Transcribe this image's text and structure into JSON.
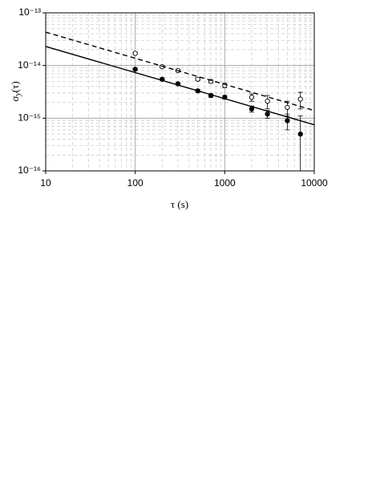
{
  "chart_data": {
    "type": "scatter",
    "x_label": "τ (s)",
    "y_label": {
      "base": "σ",
      "sub": "y",
      "tail": "(τ)"
    },
    "log_x": true,
    "log_y": true,
    "grid": true,
    "minor_grid": true,
    "xlim": [
      10,
      10000
    ],
    "xticks": [
      10,
      100,
      1000,
      10000
    ],
    "ylim": [
      1e-16,
      1e-13
    ],
    "yticks": [
      {
        "value": 1e-16,
        "label": "10⁻¹⁶"
      },
      {
        "value": 1e-15,
        "label": "10⁻¹⁵"
      },
      {
        "value": 1e-14,
        "label": "10⁻¹⁴"
      },
      {
        "value": 1e-13,
        "label": "10⁻¹³"
      }
    ],
    "series": [
      {
        "kind": "points",
        "marker": "open",
        "color": "#000000",
        "x": [
          100,
          200,
          300,
          500,
          700,
          1000,
          2000,
          3000,
          5000,
          7000
        ],
        "values": [
          1.7e-14,
          9.5e-15,
          8e-15,
          5.5e-15,
          5e-15,
          4.2e-15,
          2.5e-15,
          2.1e-15,
          1.6e-15,
          2.3e-15
        ],
        "errors": [
          5e-16,
          4e-16,
          4e-16,
          3e-16,
          3e-16,
          4e-16,
          4e-16,
          6e-16,
          5e-16,
          8e-16
        ]
      },
      {
        "kind": "points",
        "marker": "filled",
        "color": "#000000",
        "x": [
          100,
          200,
          300,
          500,
          700,
          1000,
          2000,
          3000,
          5000,
          7000
        ],
        "values": [
          8.5e-15,
          5.5e-15,
          4.5e-15,
          3.3e-15,
          2.7e-15,
          2.5e-15,
          1.5e-15,
          1.2e-15,
          9e-16,
          5e-16
        ],
        "errors": [
          3e-16,
          2e-16,
          2e-16,
          2e-16,
          2e-16,
          2e-16,
          2e-16,
          2e-16,
          3e-16,
          6e-16
        ]
      },
      {
        "kind": "line",
        "dash": true,
        "color": "#000000",
        "x": [
          10,
          10000
        ],
        "values": [
          4.3e-14,
          1.4e-15
        ]
      },
      {
        "kind": "line",
        "dash": false,
        "color": "#000000",
        "x": [
          10,
          10000
        ],
        "values": [
          2.3e-14,
          7.5e-16
        ]
      }
    ]
  }
}
